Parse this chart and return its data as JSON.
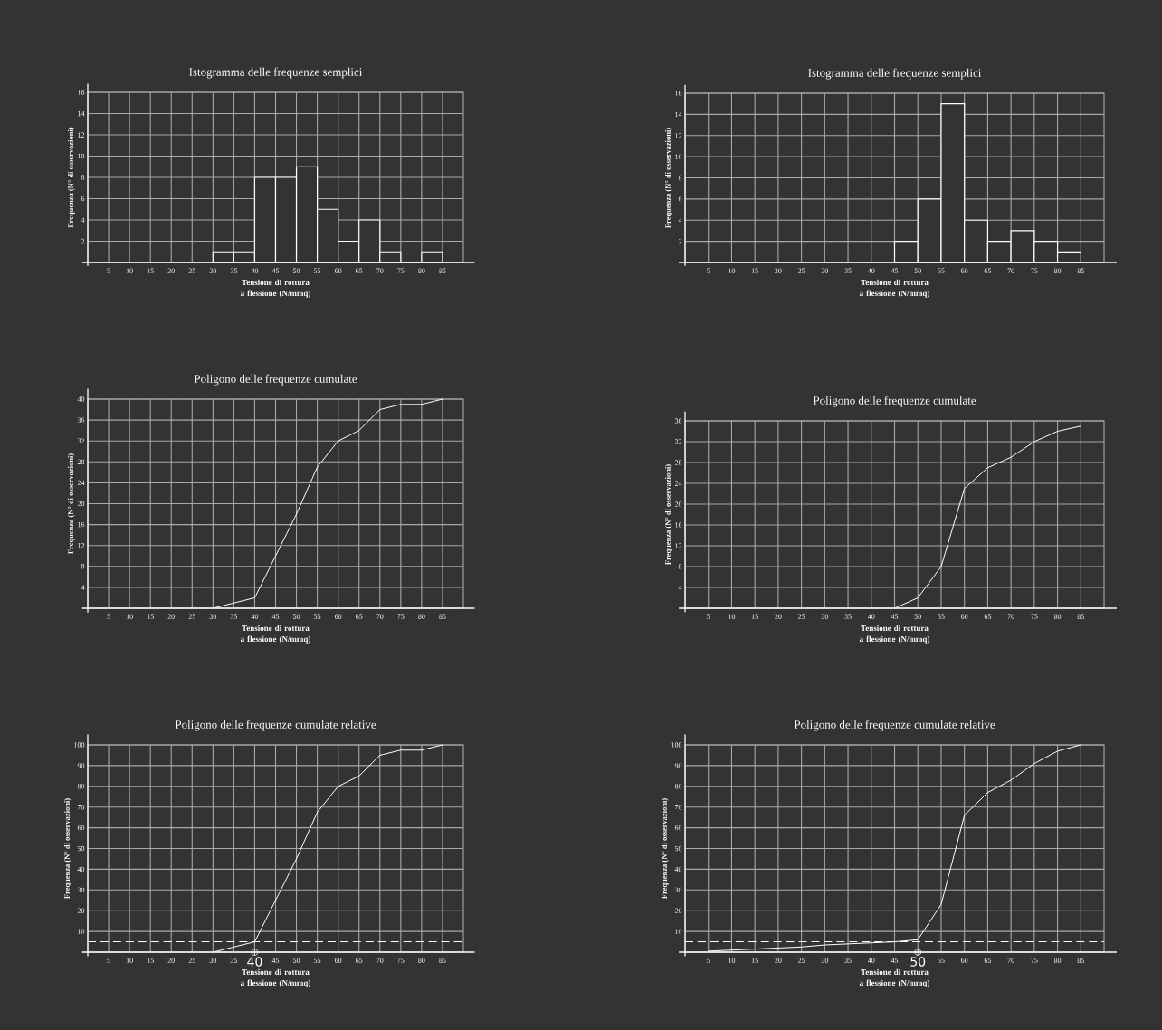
{
  "chart_data": [
    {
      "type": "histogram",
      "title": "Istogramma delle frequenze semplici",
      "xlabel": "Tensione di rottura a flessione (N/mmq)",
      "ylabel": "Frequenza (N° di osservazioni)",
      "bins": [
        30,
        35,
        40,
        45,
        50,
        55,
        60,
        65,
        70,
        75,
        80,
        85
      ],
      "values": [
        1,
        1,
        8,
        8,
        9,
        5,
        2,
        4,
        1,
        0,
        1
      ],
      "color": "#ffffff",
      "xlim": [
        0,
        90
      ],
      "ylim": [
        0,
        16
      ],
      "xticks": [
        5,
        10,
        15,
        20,
        25,
        30,
        35,
        40,
        45,
        50,
        55,
        60,
        65,
        70,
        75,
        80,
        85
      ],
      "yticks": [
        2,
        4,
        6,
        8,
        10,
        12,
        14,
        16
      ],
      "grid": true
    },
    {
      "type": "histogram",
      "title": "Istogramma delle frequenze semplici",
      "xlabel": "Tensione di rottura a flessione (N/mmq)",
      "ylabel": "Frequenza (N° di osservazioni)",
      "bins": [
        45,
        50,
        55,
        60,
        65,
        70,
        75,
        80,
        85
      ],
      "values": [
        2,
        6,
        15,
        4,
        2,
        3,
        2,
        1
      ],
      "color": "#ffffff",
      "xlim": [
        0,
        90
      ],
      "ylim": [
        0,
        16
      ],
      "xticks": [
        5,
        10,
        15,
        20,
        25,
        30,
        35,
        40,
        45,
        50,
        55,
        60,
        65,
        70,
        75,
        80,
        85
      ],
      "yticks": [
        2,
        4,
        6,
        8,
        10,
        12,
        14,
        16
      ],
      "grid": true
    },
    {
      "type": "line",
      "title": "Poligono delle frequenze cumulate",
      "xlabel": "Tensione di rottura a flessione (N/mmq)",
      "ylabel": "Frequenza (N° di osservazioni)",
      "x": [
        30,
        35,
        40,
        45,
        50,
        55,
        60,
        65,
        70,
        75,
        80,
        85
      ],
      "values": [
        0,
        1,
        2,
        10,
        18,
        27,
        32,
        34,
        38,
        39,
        39,
        40
      ],
      "color": "#ffffff",
      "xlim": [
        0,
        90
      ],
      "ylim": [
        0,
        40
      ],
      "xticks": [
        5,
        10,
        15,
        20,
        25,
        30,
        35,
        40,
        45,
        50,
        55,
        60,
        65,
        70,
        75,
        80,
        85
      ],
      "yticks": [
        4,
        8,
        12,
        16,
        20,
        24,
        28,
        32,
        36,
        40
      ],
      "grid": true
    },
    {
      "type": "line",
      "title": "Poligono delle frequenze cumulate",
      "xlabel": "Tensione di rottura a flessione (N/mmq)",
      "ylabel": "Frequenza (N° di osservazioni)",
      "x": [
        45,
        50,
        55,
        60,
        65,
        70,
        75,
        80,
        85
      ],
      "values": [
        0,
        2,
        8,
        23,
        27,
        29,
        32,
        34,
        35
      ],
      "color": "#ffffff",
      "xlim": [
        0,
        90
      ],
      "ylim": [
        0,
        36
      ],
      "xticks": [
        5,
        10,
        15,
        20,
        25,
        30,
        35,
        40,
        45,
        50,
        55,
        60,
        65,
        70,
        75,
        80,
        85
      ],
      "yticks": [
        4,
        8,
        12,
        16,
        20,
        24,
        28,
        32,
        36
      ],
      "grid": true
    },
    {
      "type": "line",
      "title": "Poligono delle frequenze cumulate relative",
      "xlabel": "Tensione di rottura a flessione (N/mmq)",
      "ylabel": "Frequenza (N° di osservazioni)",
      "x": [
        30,
        35,
        40,
        45,
        50,
        55,
        60,
        65,
        70,
        75,
        80,
        85
      ],
      "values": [
        0,
        2.5,
        5,
        25,
        45,
        67.5,
        80,
        85,
        95,
        97.5,
        97.5,
        100
      ],
      "color": "#ffffff",
      "xlim": [
        0,
        90
      ],
      "ylim": [
        0,
        100
      ],
      "xticks": [
        5,
        10,
        15,
        20,
        25,
        30,
        35,
        {
          "value": 40,
          "label": null
        },
        45,
        50,
        55,
        60,
        65,
        70,
        75,
        80,
        85
      ],
      "yticks": [
        10,
        20,
        30,
        40,
        50,
        60,
        70,
        80,
        90,
        100
      ],
      "grid": true,
      "ref_lines": [
        {
          "axis": "y",
          "value": 5,
          "color": "#ffffff",
          "line_style": "dashed"
        }
      ],
      "annotations": [
        {
          "text": "40",
          "x": 40,
          "y": 0
        }
      ]
    },
    {
      "type": "line",
      "title": "Poligono delle frequenze cumulate relative",
      "xlabel": "Tensione di rottura a flessione (N/mmq)",
      "ylabel": "Frequenza (N° di osservazioni)",
      "x": [
        5,
        10,
        15,
        20,
        25,
        30,
        35,
        40,
        45,
        50,
        55,
        60,
        65,
        70,
        75,
        80,
        85
      ],
      "values": [
        0.5,
        1,
        1.5,
        2,
        2.5,
        3.5,
        4,
        4.5,
        5,
        6,
        23,
        66,
        77,
        83,
        91,
        97,
        100
      ],
      "color": "#ffffff",
      "xlim": [
        0,
        90
      ],
      "ylim": [
        0,
        100
      ],
      "xticks": [
        5,
        10,
        15,
        20,
        25,
        30,
        35,
        40,
        45,
        {
          "value": 50,
          "label": null
        },
        55,
        60,
        65,
        70,
        75,
        80,
        85
      ],
      "yticks": [
        10,
        20,
        30,
        40,
        50,
        60,
        70,
        80,
        90,
        100
      ],
      "grid": true,
      "ref_lines": [
        {
          "axis": "y",
          "value": 5,
          "color": "#ffffff",
          "line_style": "dashed"
        }
      ],
      "annotations": [
        {
          "text": "50",
          "x": 50,
          "y": 0
        }
      ]
    }
  ]
}
